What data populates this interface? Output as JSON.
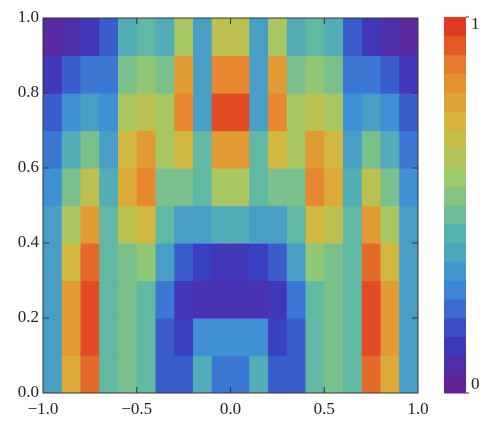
{
  "chart_data": {
    "type": "heatmap",
    "x": [
      -0.95,
      -0.85,
      -0.75,
      -0.65,
      -0.55,
      -0.45,
      -0.35,
      -0.25,
      -0.15,
      -0.05,
      0.05,
      0.15,
      0.25,
      0.35,
      0.45,
      0.55,
      0.65,
      0.75,
      0.85,
      0.95
    ],
    "y": [
      0.05,
      0.15,
      0.25,
      0.35,
      0.45,
      0.55,
      0.65,
      0.75,
      0.85,
      0.95
    ],
    "z": [
      [
        0.35,
        0.75,
        0.9,
        0.45,
        0.5,
        0.45,
        0.2,
        0.2,
        0.4,
        0.25,
        0.25,
        0.4,
        0.2,
        0.2,
        0.45,
        0.5,
        0.45,
        0.9,
        0.75,
        0.35
      ],
      [
        0.35,
        0.8,
        0.95,
        0.45,
        0.5,
        0.45,
        0.2,
        0.15,
        0.3,
        0.3,
        0.3,
        0.3,
        0.15,
        0.2,
        0.45,
        0.5,
        0.45,
        0.95,
        0.8,
        0.35
      ],
      [
        0.35,
        0.8,
        0.95,
        0.45,
        0.5,
        0.45,
        0.25,
        0.12,
        0.1,
        0.1,
        0.1,
        0.1,
        0.12,
        0.25,
        0.45,
        0.5,
        0.45,
        0.95,
        0.8,
        0.35
      ],
      [
        0.35,
        0.7,
        0.9,
        0.45,
        0.5,
        0.55,
        0.35,
        0.2,
        0.15,
        0.12,
        0.12,
        0.15,
        0.2,
        0.35,
        0.55,
        0.5,
        0.45,
        0.9,
        0.7,
        0.35
      ],
      [
        0.35,
        0.6,
        0.8,
        0.45,
        0.65,
        0.7,
        0.45,
        0.35,
        0.35,
        0.4,
        0.4,
        0.35,
        0.35,
        0.45,
        0.7,
        0.65,
        0.45,
        0.8,
        0.6,
        0.35
      ],
      [
        0.3,
        0.5,
        0.65,
        0.4,
        0.75,
        0.85,
        0.5,
        0.5,
        0.45,
        0.6,
        0.6,
        0.45,
        0.5,
        0.5,
        0.85,
        0.75,
        0.4,
        0.65,
        0.5,
        0.3
      ],
      [
        0.25,
        0.4,
        0.5,
        0.35,
        0.7,
        0.8,
        0.6,
        0.7,
        0.45,
        0.8,
        0.8,
        0.45,
        0.7,
        0.6,
        0.8,
        0.7,
        0.35,
        0.5,
        0.4,
        0.25
      ],
      [
        0.2,
        0.3,
        0.35,
        0.3,
        0.6,
        0.65,
        0.6,
        0.85,
        0.35,
        0.95,
        0.95,
        0.35,
        0.85,
        0.6,
        0.65,
        0.6,
        0.3,
        0.35,
        0.3,
        0.2
      ],
      [
        0.12,
        0.2,
        0.25,
        0.25,
        0.5,
        0.55,
        0.5,
        0.8,
        0.35,
        0.85,
        0.85,
        0.35,
        0.8,
        0.5,
        0.55,
        0.5,
        0.25,
        0.25,
        0.2,
        0.12
      ],
      [
        0.05,
        0.08,
        0.12,
        0.2,
        0.4,
        0.45,
        0.4,
        0.6,
        0.35,
        0.65,
        0.65,
        0.35,
        0.6,
        0.4,
        0.45,
        0.4,
        0.2,
        0.12,
        0.08,
        0.05
      ]
    ],
    "xlim": [
      -1,
      1
    ],
    "ylim": [
      0,
      1
    ],
    "xticks": [
      {
        "value": -1,
        "label": "−1.0"
      },
      {
        "value": -0.5,
        "label": "−0.5"
      },
      {
        "value": 0,
        "label": "0.0"
      },
      0.5,
      {
        "value": 1,
        "label": "1.0"
      }
    ],
    "yticks": [
      {
        "value": 0,
        "label": "0.0"
      },
      0.2,
      0.4,
      0.6,
      0.8,
      {
        "value": 1,
        "label": "1.0"
      }
    ],
    "clim": [
      0,
      1
    ],
    "cticks": [
      0,
      1
    ],
    "colorbar_steps": 20,
    "colormap": [
      "#6b1f8c",
      "#3a3cc2",
      "#3d8cd9",
      "#57b5ad",
      "#9ccb6b",
      "#d7b73c",
      "#e8862f",
      "#e0291f"
    ]
  }
}
